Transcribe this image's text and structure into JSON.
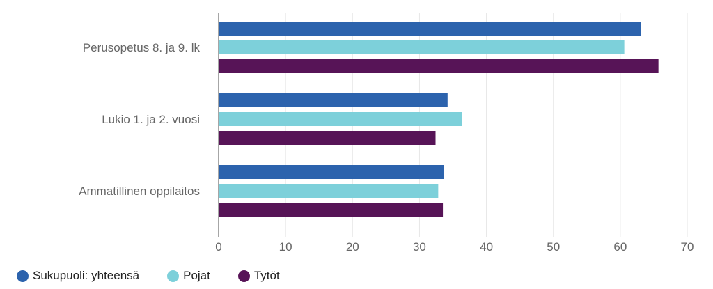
{
  "chart_data": {
    "type": "bar",
    "orientation": "horizontal",
    "categories": [
      "Perusopetus 8. ja 9. lk",
      "Lukio 1. ja 2. vuosi",
      "Ammatillinen oppilaitos"
    ],
    "series": [
      {
        "name": "Sukupuoli: yhteensä",
        "color": "#2c63ad",
        "values": [
          63.1,
          34.2,
          33.7
        ]
      },
      {
        "name": "Pojat",
        "color": "#7dd0da",
        "values": [
          60.6,
          36.3,
          32.8
        ]
      },
      {
        "name": "Tytöt",
        "color": "#571457",
        "values": [
          65.7,
          32.4,
          33.5
        ]
      }
    ],
    "xlim": [
      0,
      70
    ],
    "xticks": [
      "0",
      "10",
      "20",
      "30",
      "40",
      "50",
      "60",
      "70"
    ],
    "grid": true,
    "legend": "bottom-left"
  }
}
